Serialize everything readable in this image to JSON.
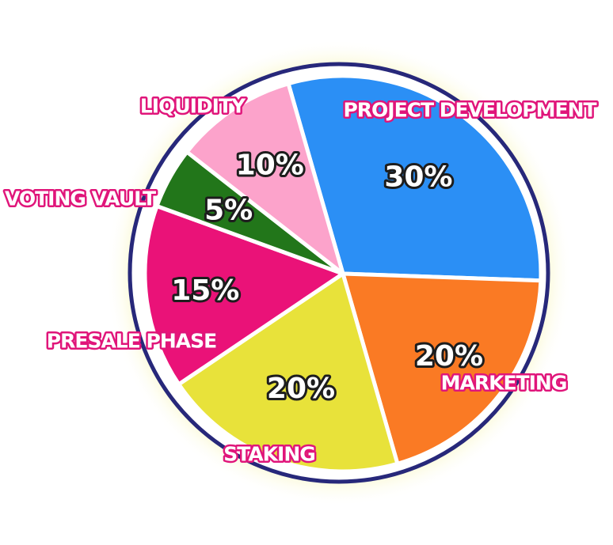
{
  "chart_data": {
    "type": "pie",
    "labels": [
      "Project Development",
      "Marketing",
      "Staking",
      "Presale Phase",
      "Voting Vault",
      "Liquidity"
    ],
    "values": [
      30,
      20,
      20,
      15,
      5,
      10
    ],
    "value_labels": [
      "30%",
      "20%",
      "20%",
      "15%",
      "5%",
      "10%"
    ],
    "category_labels": [
      "PROJECT DEVELOPMENT",
      "MARKETING",
      "STAKING",
      "PRESALE PHASE",
      "VOTING VAULT",
      "LIQUIDITY"
    ],
    "colors": [
      "#2b8ff5",
      "#fa7a24",
      "#e8e23a",
      "#ea1278",
      "#22761a",
      "#fca3cb"
    ]
  },
  "style": {
    "ring_color": "#27287a",
    "glow_color": "#f7f5b5",
    "label_outline": "#e0157a"
  }
}
